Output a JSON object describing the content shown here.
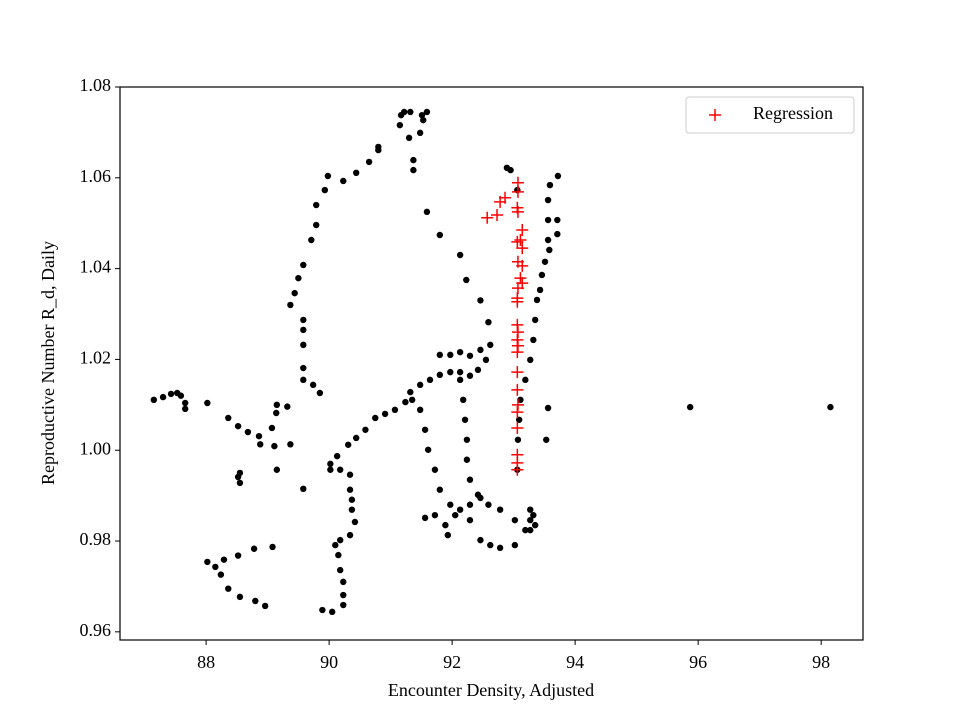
{
  "chart_data": {
    "type": "scatter",
    "xlabel": "Encounter Density, Adjusted",
    "ylabel": "Reproductive Number R_d, Daily",
    "xlim": [
      86.6,
      98.68
    ],
    "ylim": [
      0.9582,
      1.08
    ],
    "xticks": [
      88,
      90,
      92,
      94,
      96,
      98
    ],
    "yticks": [
      0.96,
      0.98,
      {
        "value": 1,
        "label": "1.00"
      },
      1.02,
      1.04,
      1.06,
      1.08
    ],
    "legend": "upper right",
    "series": [
      {
        "color": "#000000",
        "marker": "dot",
        "x": [
          87.15,
          87.3,
          87.43,
          87.53,
          87.59,
          87.66,
          87.66,
          88.02,
          88.36,
          88.52,
          88.68,
          88.86,
          88.88,
          89.11,
          89.37,
          89.07,
          89.14,
          89.15,
          89.32,
          89.15,
          89.58,
          88.55,
          88.52,
          88.55,
          88.02,
          88.15,
          88.24,
          88.36,
          88.55,
          88.8,
          88.96,
          88.78,
          88.52,
          88.29,
          89.08,
          89.37,
          89.44,
          89.5,
          89.58,
          89.71,
          89.79,
          89.79,
          89.93,
          89.98,
          90.23,
          90.44,
          90.65,
          90.8,
          90.8,
          89.58,
          89.58,
          89.58,
          89.58,
          89.58,
          89.74,
          89.85,
          91.15,
          91.17,
          91.22,
          91.32,
          91.3,
          91.37,
          91.59,
          91.8,
          92.13,
          92.23,
          92.46,
          92.59,
          91.51,
          91.59,
          91.53,
          91.48,
          91.37,
          92.89,
          92.95,
          93.06,
          91.8,
          91.97,
          92.13,
          92.29,
          92.46,
          92.62,
          92.55,
          92.42,
          92.29,
          92.13,
          91.97,
          91.8,
          91.64,
          91.48,
          91.32,
          91.24,
          91.07,
          90.91,
          90.75,
          90.59,
          90.44,
          90.31,
          90.13,
          90.02,
          90.02,
          90.18,
          90.34,
          90.34,
          90.37,
          90.37,
          90.42,
          90.34,
          90.18,
          90.1,
          90.15,
          90.18,
          90.23,
          90.23,
          90.23,
          90.05,
          89.89,
          92.13,
          92.18,
          92.21,
          92.24,
          92.24,
          92.29,
          92.42,
          92.59,
          92.78,
          93.02,
          93.19,
          93.27,
          93.02,
          92.78,
          92.62,
          92.46,
          92.29,
          92.13,
          91.97,
          91.8,
          91.72,
          91.61,
          91.56,
          91.48,
          91.35,
          93.32,
          93.35,
          93.27,
          93.27,
          91.89,
          92.05,
          92.29,
          92.46,
          91.72,
          91.56,
          91.93,
          93.06,
          93.07,
          93.09,
          93.11,
          93.19,
          93.27,
          93.32,
          93.35,
          93.38,
          93.43,
          93.46,
          93.51,
          93.58,
          93.56,
          93.56,
          93.56,
          93.59,
          93.72,
          93.71,
          93.71,
          93.56,
          93.53,
          95.87,
          98.15
        ],
        "y": [
          1.0111,
          1.0117,
          1.0124,
          1.0126,
          1.012,
          1.0104,
          1.0091,
          1.0104,
          1.0071,
          1.0053,
          1.004,
          1.0031,
          1.0013,
          1.0009,
          1.0013,
          1.0049,
          1.0082,
          1.01,
          1.0096,
          0.9957,
          0.9915,
          0.995,
          0.9941,
          0.9928,
          0.9754,
          0.9743,
          0.9726,
          0.9695,
          0.9677,
          0.9668,
          0.9657,
          0.9783,
          0.9768,
          0.9759,
          0.9787,
          1.032,
          1.0346,
          1.0379,
          1.0408,
          1.0463,
          1.0496,
          1.054,
          1.0573,
          1.0604,
          1.0593,
          1.0611,
          1.0635,
          1.0661,
          1.0668,
          1.0287,
          1.0265,
          1.0232,
          1.0181,
          1.0155,
          1.0144,
          1.0126,
          1.0716,
          1.0738,
          1.0745,
          1.0745,
          1.0688,
          1.0639,
          1.0525,
          1.0474,
          1.043,
          1.0375,
          1.033,
          1.0282,
          1.0738,
          1.0745,
          1.0727,
          1.0699,
          1.0617,
          1.0622,
          1.0617,
          1.0573,
          1.021,
          1.021,
          1.0216,
          1.0208,
          1.0221,
          1.0232,
          1.0199,
          1.0177,
          1.0164,
          1.0172,
          1.0172,
          1.0166,
          1.0155,
          1.0144,
          1.0128,
          1.0106,
          1.0089,
          1.008,
          1.0071,
          1.0045,
          1.0027,
          1.0012,
          0.9987,
          0.997,
          0.9957,
          0.9957,
          0.9946,
          0.9913,
          0.9891,
          0.9869,
          0.9842,
          0.9813,
          0.9802,
          0.9791,
          0.9769,
          0.9736,
          0.971,
          0.9681,
          0.9659,
          0.9644,
          0.9648,
          1.0155,
          1.0111,
          1.0067,
          1.0023,
          0.9979,
          0.9935,
          0.9902,
          0.988,
          0.9869,
          0.9846,
          0.9824,
          0.9846,
          0.9791,
          0.9785,
          0.9791,
          0.9802,
          0.9846,
          0.9869,
          0.988,
          0.9913,
          0.9957,
          1.0001,
          1.0045,
          1.0089,
          1.0111,
          0.9857,
          0.9835,
          0.9869,
          0.9824,
          0.9835,
          0.9857,
          0.988,
          0.9895,
          0.9857,
          0.9851,
          0.9813,
          0.9957,
          1.0023,
          1.0067,
          1.0111,
          1.0155,
          1.0199,
          1.0243,
          1.0287,
          1.0331,
          1.0353,
          1.0386,
          1.0415,
          1.0441,
          1.0463,
          1.0507,
          1.0551,
          1.0584,
          1.0604,
          1.0507,
          1.0476,
          1.0093,
          1.0023,
          1.0095,
          1.0095
        ]
      },
      {
        "name": "Regression",
        "color": "#ff0000",
        "marker": "plus",
        "x": [
          92.57,
          92.73,
          92.78,
          92.86,
          93.07,
          93.07,
          93.06,
          93.07,
          93.14,
          93.11,
          93.06,
          93.14,
          93.07,
          93.14,
          93.11,
          93.07,
          93.06,
          93.14,
          93.06,
          93.06,
          93.07,
          93.06,
          93.07,
          93.06,
          93.06,
          93.06,
          93.07,
          93.06,
          93.06,
          93.06,
          93.06,
          93.06
        ],
        "y": [
          1.0512,
          1.0518,
          1.0547,
          1.0556,
          1.0589,
          1.0569,
          1.0534,
          1.0525,
          1.0485,
          1.0463,
          1.0459,
          1.0445,
          1.0415,
          1.0406,
          1.0379,
          1.0357,
          1.0335,
          1.0368,
          1.0327,
          1.0276,
          1.026,
          1.0243,
          1.023,
          1.0216,
          1.0172,
          1.0133,
          1.01,
          1.0084,
          1.0049,
          0.999,
          0.9972,
          0.9957
        ]
      }
    ]
  }
}
